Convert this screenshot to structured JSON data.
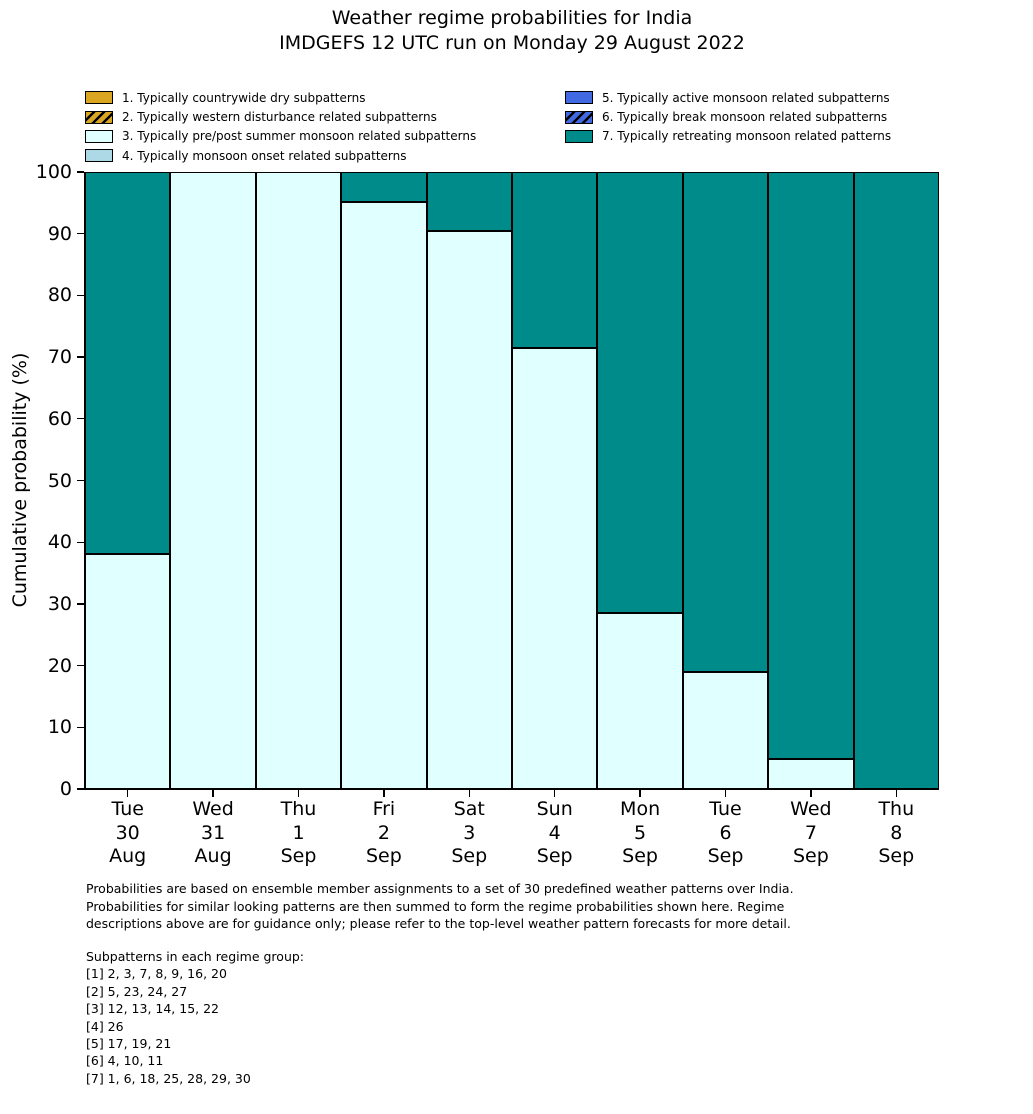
{
  "title": {
    "line1": "Weather regime probabilities for India",
    "line2": "IMDGEFS 12 UTC run on Monday 29 August 2022"
  },
  "legend": {
    "columns": [
      [
        {
          "label": "1. Typically countrywide dry subpatterns",
          "color": "#DAA520",
          "hatch": false
        },
        {
          "label": "2. Typically western disturbance related subpatterns",
          "color": "#DAA520",
          "hatch": true
        },
        {
          "label": "3. Typically pre/post summer monsoon related subpatterns",
          "color": "#E0FFFF",
          "hatch": false
        },
        {
          "label": "4. Typically monsoon onset related subpatterns",
          "color": "#ADD8E6",
          "hatch": false
        }
      ],
      [
        {
          "label": "5. Typically active monsoon related subpatterns",
          "color": "#4169E1",
          "hatch": false
        },
        {
          "label": "6. Typically break monsoon related subpatterns",
          "color": "#4169E1",
          "hatch": true
        },
        {
          "label": "7. Typically retreating monsoon related patterns",
          "color": "#008B8B",
          "hatch": false
        }
      ]
    ]
  },
  "chart_data": {
    "type": "bar",
    "stacked": true,
    "title": "Weather regime probabilities for India",
    "subtitle": "IMDGEFS 12 UTC run on Monday 29 August 2022",
    "ylabel": "Cumulative probability (%)",
    "ylim": [
      0,
      100
    ],
    "yticks": [
      0,
      10,
      20,
      30,
      40,
      50,
      60,
      70,
      80,
      90,
      100
    ],
    "grid": false,
    "legend_position": "top",
    "categories": [
      "Tue 30 Aug",
      "Wed 31 Aug",
      "Thu 1 Sep",
      "Fri 2 Sep",
      "Sat 3 Sep",
      "Sun 4 Sep",
      "Mon 5 Sep",
      "Tue 6 Sep",
      "Wed 7 Sep",
      "Thu 8 Sep"
    ],
    "category_lines": [
      [
        "Tue",
        "30",
        "Aug"
      ],
      [
        "Wed",
        "31",
        "Aug"
      ],
      [
        "Thu",
        "1",
        "Sep"
      ],
      [
        "Fri",
        "2",
        "Sep"
      ],
      [
        "Sat",
        "3",
        "Sep"
      ],
      [
        "Sun",
        "4",
        "Sep"
      ],
      [
        "Mon",
        "5",
        "Sep"
      ],
      [
        "Tue",
        "6",
        "Sep"
      ],
      [
        "Wed",
        "7",
        "Sep"
      ],
      [
        "Thu",
        "8",
        "Sep"
      ]
    ],
    "series": [
      {
        "name": "3. Typically pre/post summer monsoon related subpatterns",
        "color": "#E0FFFF",
        "values": [
          38.1,
          100,
          100,
          95.2,
          90.5,
          71.4,
          28.6,
          19.0,
          4.8,
          0
        ]
      },
      {
        "name": "7. Typically retreating monsoon related patterns",
        "color": "#008B8B",
        "values": [
          61.9,
          0,
          0,
          4.8,
          9.5,
          28.6,
          71.4,
          81.0,
          95.2,
          100
        ]
      }
    ],
    "bar_edge_color": "#000000"
  },
  "footer": {
    "lines": [
      "Probabilities are based on ensemble member assignments to a set of 30 predefined weather patterns over India.",
      "Probabilities for similar looking patterns are then summed to form the regime probabilities shown here. Regime",
      "descriptions above are for guidance only; please refer to the top-level weather pattern forecasts for more detail."
    ]
  },
  "subpatterns": {
    "heading": "Subpatterns in each regime group:",
    "lines": [
      "[1] 2, 3, 7, 8, 9, 16, 20",
      "[2] 5, 23, 24, 27",
      "[3] 12, 13, 14, 15, 22",
      "[4] 26",
      "[5] 17, 19, 21",
      "[6] 4, 10, 11",
      "[7] 1, 6, 18, 25, 28, 29, 30"
    ]
  }
}
